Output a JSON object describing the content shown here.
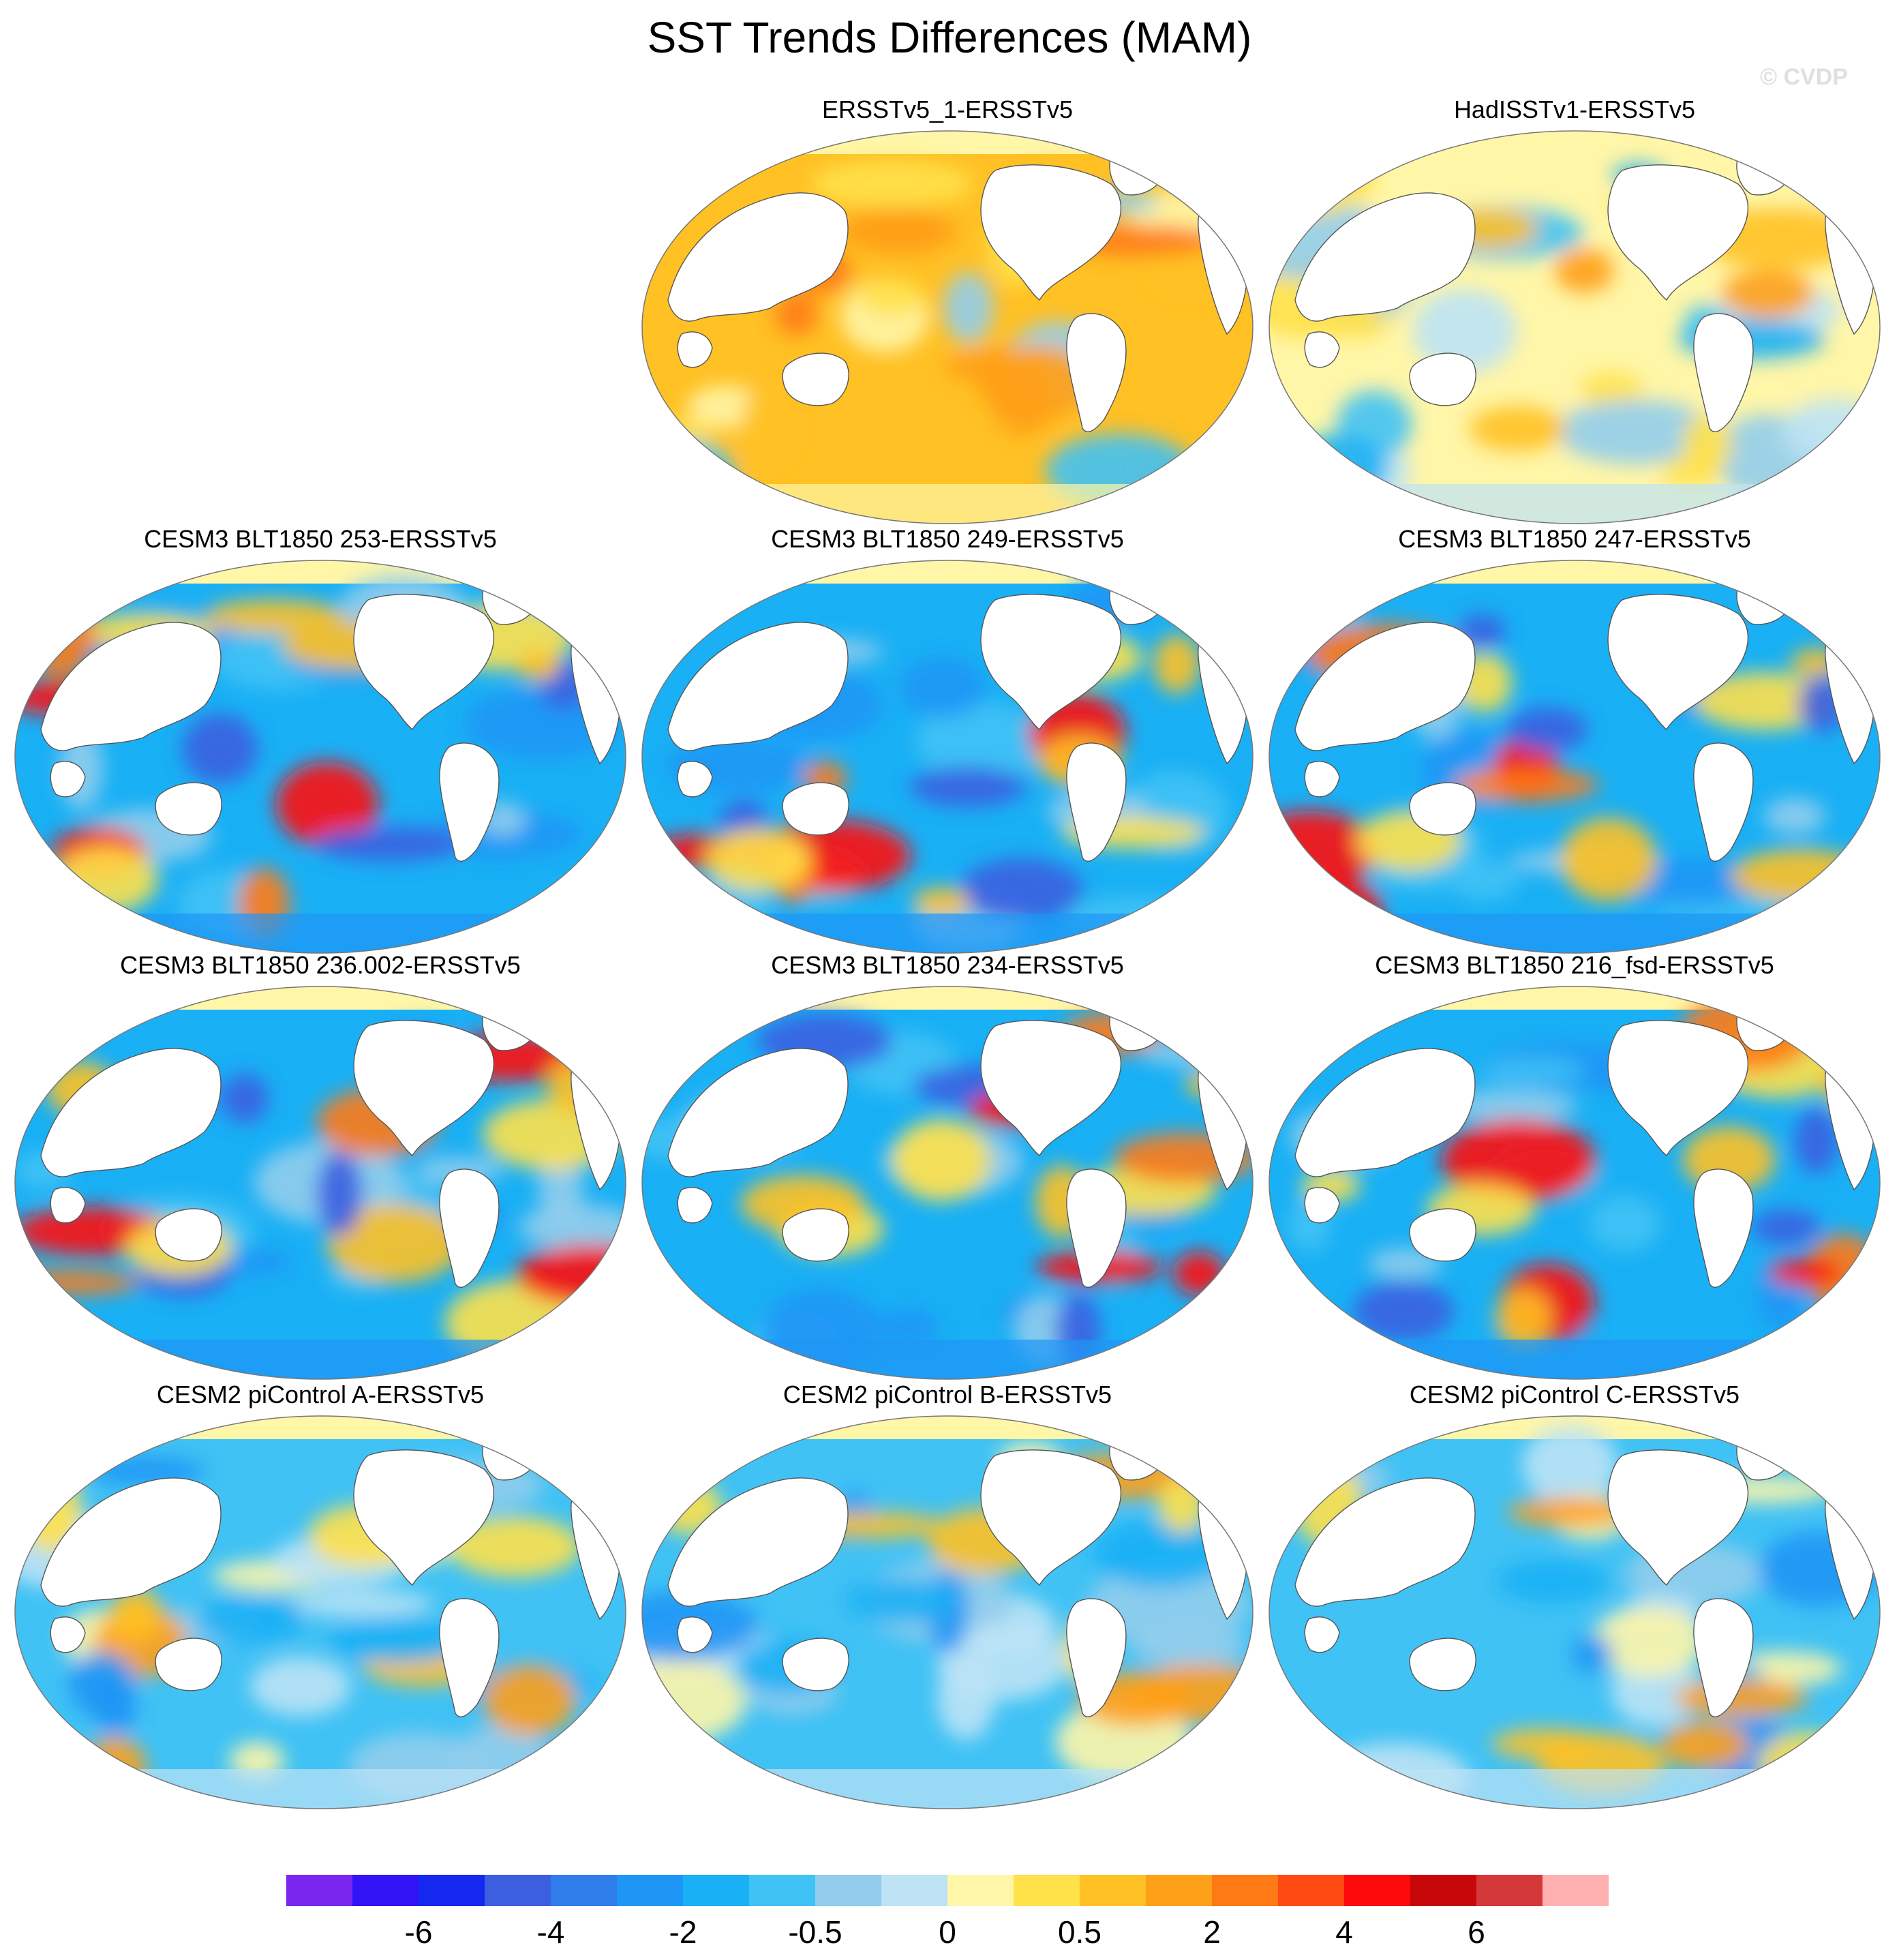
{
  "title": "SST Trends Differences (MAM)",
  "watermark": "© CVDP",
  "panels": [
    {
      "title": "ERSSTv5_1-ERSSTv5",
      "tone": "warm"
    },
    {
      "title": "HadISSTv1-ERSSTv5",
      "tone": "mixed"
    },
    {
      "title": "CESM3 BLT1850 253-ERSSTv5",
      "tone": "cold"
    },
    {
      "title": "CESM3 BLT1850 249-ERSSTv5",
      "tone": "cold"
    },
    {
      "title": "CESM3 BLT1850 247-ERSSTv5",
      "tone": "cold"
    },
    {
      "title": "CESM3 BLT1850 236.002-ERSSTv5",
      "tone": "cold"
    },
    {
      "title": "CESM3 BLT1850 234-ERSSTv5",
      "tone": "cold"
    },
    {
      "title": "CESM3 BLT1850 216_fsd-ERSSTv5",
      "tone": "cold"
    },
    {
      "title": "CESM2 piControl A-ERSSTv5",
      "tone": "cool"
    },
    {
      "title": "CESM2 piControl B-ERSSTv5",
      "tone": "cool"
    },
    {
      "title": "CESM2 piControl C-ERSSTv5",
      "tone": "cool"
    }
  ],
  "chart_data": {
    "type": "map",
    "colorbar": {
      "colors": [
        "#7b26ef",
        "#3213f5",
        "#1428ef",
        "#3c5fe0",
        "#2f7ceb",
        "#1f96f5",
        "#19b0f5",
        "#40c2f5",
        "#92cdec",
        "#bde3f5",
        "#fff6a8",
        "#ffe14a",
        "#ffc124",
        "#ffa019",
        "#ff7a14",
        "#ff4a14",
        "#ff0a0a",
        "#c80808",
        "#d43838",
        "#ffb0b0"
      ],
      "tick_labels": [
        "-6",
        "-4",
        "-2",
        "-0.5",
        "0",
        "0.5",
        "2",
        "4",
        "6"
      ],
      "tick_boundary_index": [
        2,
        4,
        6,
        8,
        10,
        12,
        14,
        16,
        18
      ]
    }
  }
}
